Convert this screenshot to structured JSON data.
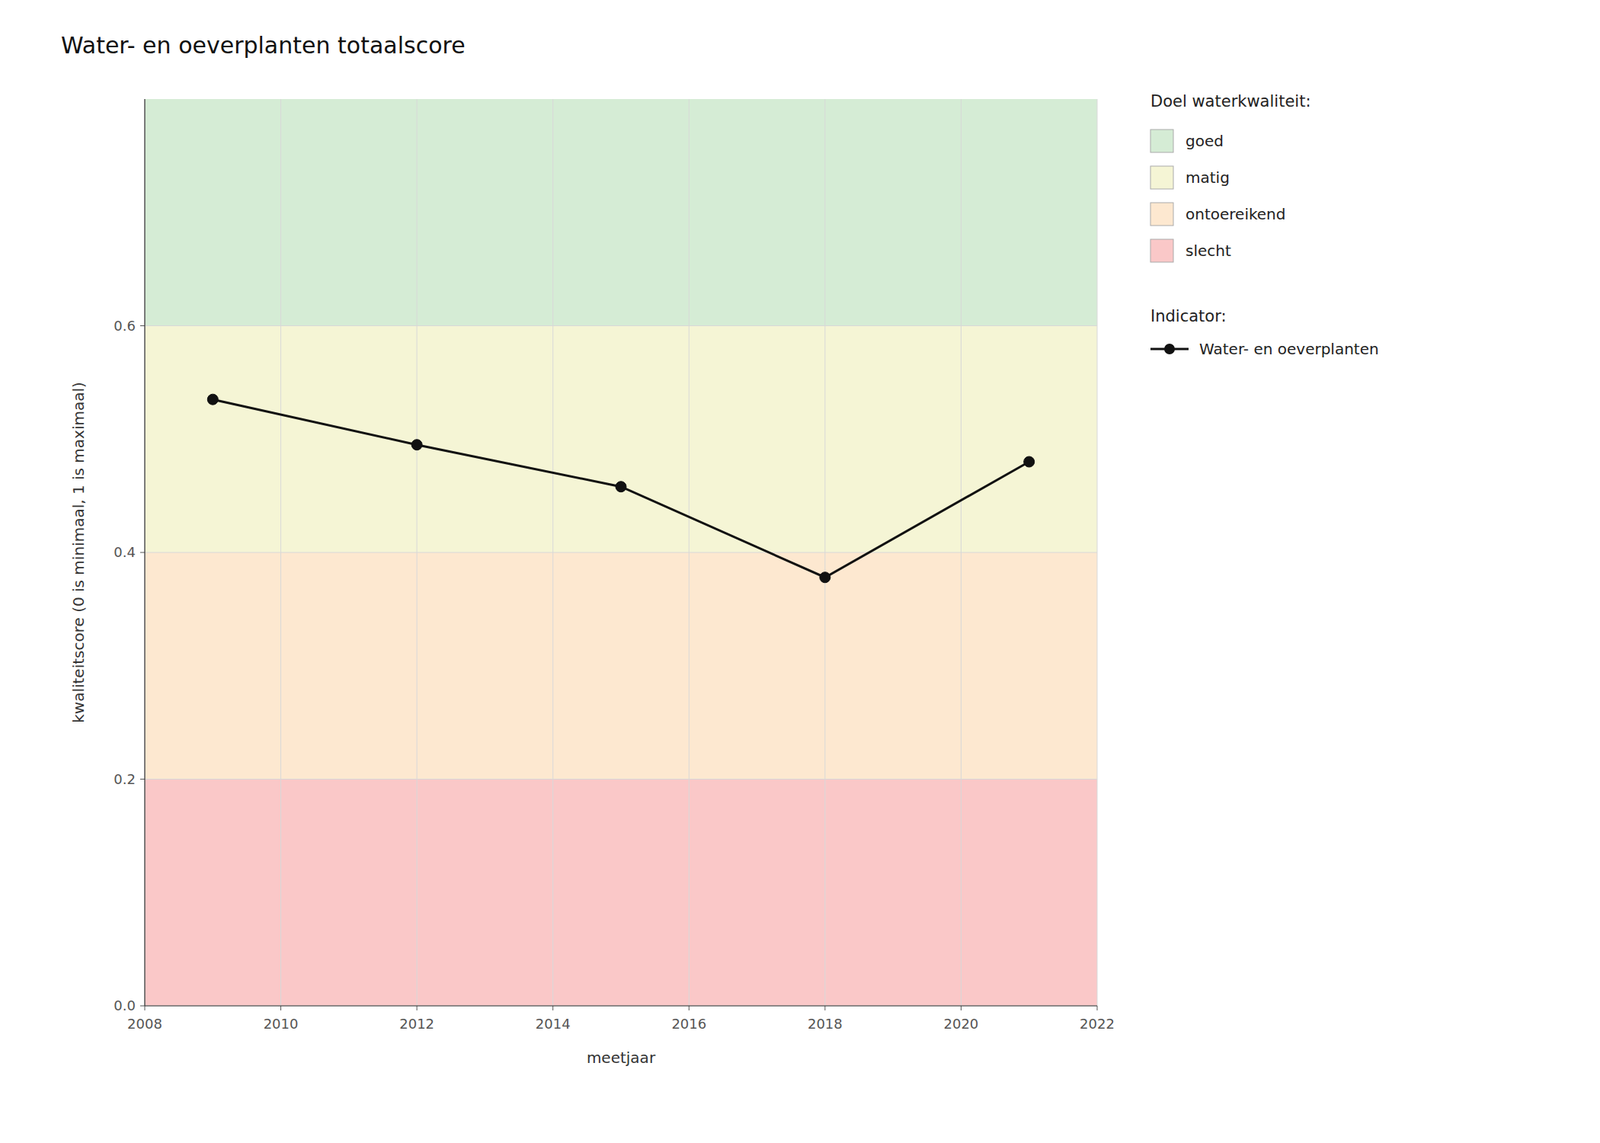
{
  "chart_data": {
    "type": "line",
    "title": "Water- en oeverplanten totaalscore",
    "x_label": "meetjaar",
    "y_label": "kwaliteitscore (0 is minimaal, 1 is maximaal)",
    "x": [
      2009,
      2012,
      2015,
      2018,
      2021
    ],
    "series": [
      {
        "name": "Water- en oeverplanten",
        "color": "#111111",
        "marker": "circle",
        "line_style": "solid",
        "values": [
          0.535,
          0.495,
          0.458,
          0.378,
          0.48
        ]
      }
    ],
    "xlim": [
      2008,
      2022
    ],
    "ylim": [
      0.0,
      0.8
    ],
    "xticks": [
      2008,
      2010,
      2012,
      2014,
      2016,
      2018,
      2020,
      2022
    ],
    "yticks": [
      {
        "value": 0.0,
        "label": "0.0"
      },
      0.2,
      0.4,
      0.6
    ],
    "grid": true,
    "bands_title": "Doel waterkwaliteit:",
    "legend_title": "Indicator:",
    "bands": [
      {
        "name": "goed",
        "ymin": 0.6,
        "ymax": 0.8,
        "color": "#d5ecd5"
      },
      {
        "name": "matig",
        "ymin": 0.4,
        "ymax": 0.6,
        "color": "#f5f5d5"
      },
      {
        "name": "ontoereikend",
        "ymin": 0.2,
        "ymax": 0.4,
        "color": "#fde8d0"
      },
      {
        "name": "slecht",
        "ymin": 0.0,
        "ymax": 0.2,
        "color": "#fac8c8"
      }
    ]
  }
}
